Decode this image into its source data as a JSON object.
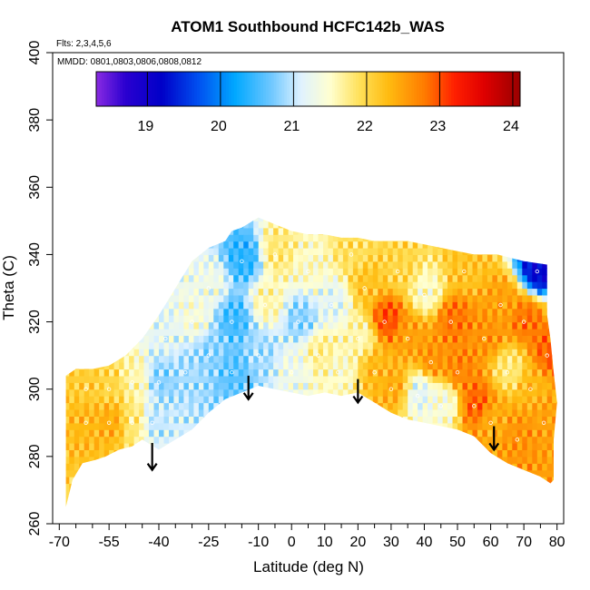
{
  "chart_data": {
    "type": "heatmap",
    "title": "ATOM1 Southbound HCFC142b_WAS",
    "subtitle_flights": "Flts: 2,3,4,5,6",
    "subtitle_dates": "MMDD: 0801,0803,0806,0808,0812",
    "xlabel": "Latitude (deg N)",
    "ylabel": "Theta (C)",
    "xlim": [
      -72,
      82
    ],
    "ylim": [
      260,
      400
    ],
    "x_ticks": [
      -70,
      -55,
      -40,
      -25,
      -10,
      0,
      10,
      20,
      30,
      40,
      50,
      60,
      70,
      80
    ],
    "x_tick_labels": [
      "-70",
      "-55",
      "-40",
      "-25",
      "-10",
      "0",
      "10",
      "20",
      "30",
      "40",
      "50",
      "60",
      "70",
      "80"
    ],
    "x_minor_ticks": [
      -65,
      -60,
      -50,
      -45,
      -35,
      -30,
      -20,
      -15,
      -5,
      5,
      15,
      25,
      35,
      45,
      55,
      65,
      75
    ],
    "y_ticks": [
      260,
      280,
      300,
      320,
      340,
      360,
      380,
      400
    ],
    "y_tick_labels": [
      "260",
      "280",
      "300",
      "320",
      "340",
      "360",
      "380",
      "400"
    ],
    "colorbar": {
      "min": 18.3,
      "max": 24.1,
      "tick_values": [
        19,
        20,
        21,
        22,
        23,
        24
      ],
      "tick_labels": [
        "19",
        "20",
        "21",
        "22",
        "23",
        "24"
      ],
      "stops": [
        {
          "v": 18.3,
          "color": "#8a2be2"
        },
        {
          "v": 18.7,
          "color": "#2a00d0"
        },
        {
          "v": 19.2,
          "color": "#0000c8"
        },
        {
          "v": 19.7,
          "color": "#0050f0"
        },
        {
          "v": 20.2,
          "color": "#00a8ff"
        },
        {
          "v": 20.7,
          "color": "#70c8ff"
        },
        {
          "v": 21.1,
          "color": "#dff2ff"
        },
        {
          "v": 21.5,
          "color": "#ffffd0"
        },
        {
          "v": 21.9,
          "color": "#ffe15a"
        },
        {
          "v": 22.3,
          "color": "#ffbb10"
        },
        {
          "v": 22.8,
          "color": "#ff7a00"
        },
        {
          "v": 23.2,
          "color": "#ff2000"
        },
        {
          "v": 23.6,
          "color": "#e00000"
        },
        {
          "v": 24.1,
          "color": "#990000"
        }
      ]
    },
    "boundary_lower": [
      [
        -68,
        265
      ],
      [
        -66,
        273
      ],
      [
        -63,
        278
      ],
      [
        -59,
        279
      ],
      [
        -56,
        280
      ],
      [
        -52,
        282
      ],
      [
        -48,
        283
      ],
      [
        -45,
        285
      ],
      [
        -40,
        282
      ],
      [
        -35,
        285
      ],
      [
        -30,
        288
      ],
      [
        -25,
        293
      ],
      [
        -20,
        297
      ],
      [
        -15,
        299
      ],
      [
        -10,
        301
      ],
      [
        -5,
        300
      ],
      [
        0,
        299
      ],
      [
        5,
        298
      ],
      [
        10,
        299
      ],
      [
        15,
        298
      ],
      [
        20,
        299
      ],
      [
        25,
        296
      ],
      [
        30,
        293
      ],
      [
        35,
        291
      ],
      [
        40,
        290
      ],
      [
        45,
        289
      ],
      [
        50,
        288
      ],
      [
        55,
        286
      ],
      [
        60,
        281
      ],
      [
        65,
        278
      ],
      [
        70,
        276
      ],
      [
        75,
        274
      ],
      [
        78,
        272
      ]
    ],
    "boundary_upper": [
      [
        79,
        273
      ],
      [
        79,
        285
      ],
      [
        80,
        296
      ],
      [
        79,
        305
      ],
      [
        78,
        315
      ],
      [
        77,
        322
      ],
      [
        77,
        330
      ],
      [
        77,
        337
      ],
      [
        70,
        338
      ],
      [
        62,
        340
      ],
      [
        55,
        340
      ],
      [
        50,
        341
      ],
      [
        45,
        342
      ],
      [
        40,
        343
      ],
      [
        35,
        344
      ],
      [
        30,
        344
      ],
      [
        25,
        344
      ],
      [
        20,
        345
      ],
      [
        15,
        345
      ],
      [
        10,
        346
      ],
      [
        5,
        346
      ],
      [
        0,
        347
      ],
      [
        -5,
        349
      ],
      [
        -10,
        351
      ],
      [
        -15,
        348
      ],
      [
        -18,
        347
      ],
      [
        -20,
        344
      ],
      [
        -25,
        342
      ],
      [
        -30,
        338
      ],
      [
        -35,
        330
      ],
      [
        -40,
        322
      ],
      [
        -45,
        315
      ],
      [
        -50,
        310
      ],
      [
        -55,
        307
      ],
      [
        -60,
        306
      ],
      [
        -65,
        306
      ],
      [
        -68,
        304
      ],
      [
        -68,
        285
      ]
    ],
    "region_values": [
      {
        "lat": -62,
        "theta": 290,
        "value": 22.3
      },
      {
        "lat": -62,
        "theta": 300,
        "value": 22.1
      },
      {
        "lat": -55,
        "theta": 290,
        "value": 22.4
      },
      {
        "lat": -55,
        "theta": 300,
        "value": 22.0
      },
      {
        "lat": -48,
        "theta": 290,
        "value": 21.8
      },
      {
        "lat": -48,
        "theta": 302,
        "value": 21.6
      },
      {
        "lat": -42,
        "theta": 290,
        "value": 21.0
      },
      {
        "lat": -40,
        "theta": 302,
        "value": 20.8
      },
      {
        "lat": -38,
        "theta": 315,
        "value": 21.2
      },
      {
        "lat": -32,
        "theta": 305,
        "value": 20.9
      },
      {
        "lat": -30,
        "theta": 320,
        "value": 21.4
      },
      {
        "lat": -25,
        "theta": 310,
        "value": 20.8
      },
      {
        "lat": -25,
        "theta": 330,
        "value": 21.3
      },
      {
        "lat": -18,
        "theta": 305,
        "value": 20.6
      },
      {
        "lat": -18,
        "theta": 320,
        "value": 20.5
      },
      {
        "lat": -15,
        "theta": 338,
        "value": 20.4
      },
      {
        "lat": -10,
        "theta": 310,
        "value": 20.9
      },
      {
        "lat": -8,
        "theta": 325,
        "value": 21.6
      },
      {
        "lat": -5,
        "theta": 340,
        "value": 21.8
      },
      {
        "lat": 0,
        "theta": 305,
        "value": 21.3
      },
      {
        "lat": 2,
        "theta": 320,
        "value": 20.8
      },
      {
        "lat": 5,
        "theta": 335,
        "value": 21.5
      },
      {
        "lat": 8,
        "theta": 310,
        "value": 21.7
      },
      {
        "lat": 12,
        "theta": 325,
        "value": 21.2
      },
      {
        "lat": 14,
        "theta": 305,
        "value": 21.5
      },
      {
        "lat": 18,
        "theta": 340,
        "value": 21.9
      },
      {
        "lat": 20,
        "theta": 315,
        "value": 21.6
      },
      {
        "lat": 22,
        "theta": 330,
        "value": 22.2
      },
      {
        "lat": 25,
        "theta": 305,
        "value": 22.3
      },
      {
        "lat": 28,
        "theta": 320,
        "value": 23.0
      },
      {
        "lat": 30,
        "theta": 300,
        "value": 22.4
      },
      {
        "lat": 32,
        "theta": 335,
        "value": 22.0
      },
      {
        "lat": 35,
        "theta": 315,
        "value": 22.5
      },
      {
        "lat": 38,
        "theta": 298,
        "value": 21.2
      },
      {
        "lat": 40,
        "theta": 328,
        "value": 21.5
      },
      {
        "lat": 42,
        "theta": 308,
        "value": 22.6
      },
      {
        "lat": 45,
        "theta": 295,
        "value": 21.4
      },
      {
        "lat": 48,
        "theta": 320,
        "value": 22.8
      },
      {
        "lat": 50,
        "theta": 305,
        "value": 22.7
      },
      {
        "lat": 52,
        "theta": 335,
        "value": 22.2
      },
      {
        "lat": 55,
        "theta": 295,
        "value": 22.9
      },
      {
        "lat": 58,
        "theta": 315,
        "value": 22.6
      },
      {
        "lat": 60,
        "theta": 290,
        "value": 22.4
      },
      {
        "lat": 63,
        "theta": 325,
        "value": 22.5
      },
      {
        "lat": 65,
        "theta": 305,
        "value": 21.8
      },
      {
        "lat": 68,
        "theta": 285,
        "value": 22.6
      },
      {
        "lat": 70,
        "theta": 320,
        "value": 22.8
      },
      {
        "lat": 72,
        "theta": 300,
        "value": 22.3
      },
      {
        "lat": 74,
        "theta": 335,
        "value": 19.2
      },
      {
        "lat": 76,
        "theta": 290,
        "value": 22.5
      },
      {
        "lat": 77,
        "theta": 310,
        "value": 22.9
      }
    ],
    "arrows": [
      {
        "lat": -42,
        "theta_top": 284,
        "theta_tip": 276
      },
      {
        "lat": -13,
        "theta_top": 304,
        "theta_tip": 297
      },
      {
        "lat": 20,
        "theta_top": 303,
        "theta_tip": 296
      },
      {
        "lat": 61,
        "theta_top": 289,
        "theta_tip": 282
      }
    ]
  }
}
